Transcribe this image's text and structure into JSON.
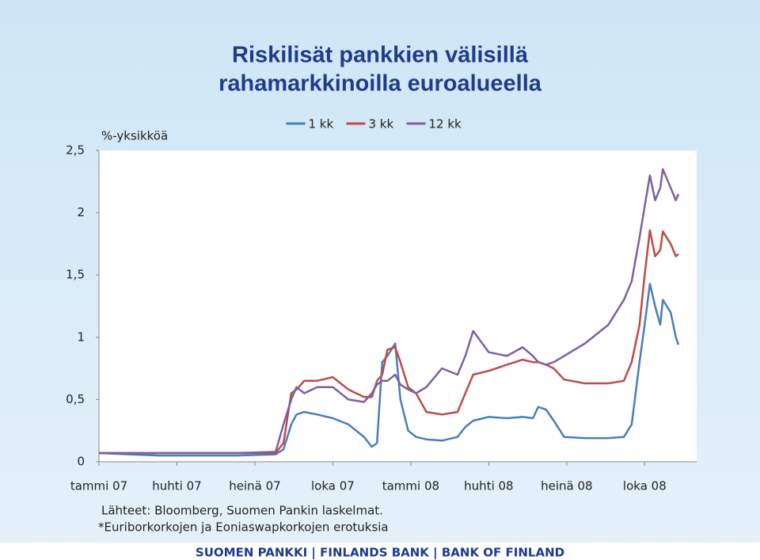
{
  "chart_data": {
    "type": "line",
    "title": [
      "Riskilisät pankkien välisillä",
      "rahamarkkinoilla euroalueella"
    ],
    "y_axis_label": "%-yksikköä",
    "notes": [
      "Lähteet: Bloomberg, Suomen Pankin laskelmat.",
      "*Euriborkorkojen ja Eoniaswapkorkojen erotuksia"
    ],
    "footer": "SUOMEN PANKKI | FINLANDS BANK | BANK OF FINLAND",
    "legend": "top",
    "x": [
      0,
      2.3,
      5.3,
      6.8,
      7.1,
      7.4,
      7.6,
      7.9,
      8.4,
      9.0,
      9.6,
      10.2,
      10.5,
      10.7,
      10.9,
      11.1,
      11.4,
      11.6,
      11.9,
      12.2,
      12.6,
      13.2,
      13.8,
      14.1,
      14.4,
      15.0,
      15.7,
      16.3,
      16.7,
      16.9,
      17.2,
      17.5,
      17.9,
      18.7,
      19.6,
      20.2,
      20.5,
      20.8,
      21.0,
      21.2,
      21.4,
      21.6,
      21.7,
      22.0,
      22.2,
      22.3
    ],
    "series": [
      {
        "name": "1 kk",
        "color": "#4a7ebb",
        "values": [
          0.07,
          0.05,
          0.05,
          0.06,
          0.1,
          0.3,
          0.38,
          0.4,
          0.38,
          0.35,
          0.3,
          0.2,
          0.12,
          0.15,
          0.8,
          0.85,
          0.95,
          0.5,
          0.25,
          0.2,
          0.18,
          0.17,
          0.2,
          0.28,
          0.33,
          0.36,
          0.35,
          0.36,
          0.35,
          0.44,
          0.42,
          0.33,
          0.2,
          0.19,
          0.19,
          0.2,
          0.3,
          0.8,
          1.1,
          1.43,
          1.25,
          1.1,
          1.3,
          1.2,
          1.0,
          0.94
        ]
      },
      {
        "name": "3 kk",
        "color": "#be4b48",
        "values": [
          0.07,
          0.07,
          0.07,
          0.07,
          0.15,
          0.55,
          0.58,
          0.65,
          0.65,
          0.68,
          0.58,
          0.52,
          0.52,
          0.65,
          0.7,
          0.9,
          0.92,
          0.8,
          0.6,
          0.55,
          0.4,
          0.38,
          0.4,
          0.55,
          0.7,
          0.73,
          0.78,
          0.82,
          0.8,
          0.8,
          0.78,
          0.75,
          0.66,
          0.63,
          0.63,
          0.65,
          0.8,
          1.1,
          1.5,
          1.86,
          1.65,
          1.7,
          1.85,
          1.75,
          1.65,
          1.67
        ]
      },
      {
        "name": "12 kk",
        "color": "#7d60a0",
        "values": [
          0.07,
          0.07,
          0.07,
          0.08,
          0.3,
          0.5,
          0.6,
          0.55,
          0.6,
          0.6,
          0.5,
          0.48,
          0.55,
          0.62,
          0.65,
          0.65,
          0.7,
          0.62,
          0.58,
          0.55,
          0.6,
          0.75,
          0.7,
          0.85,
          1.05,
          0.88,
          0.85,
          0.92,
          0.85,
          0.8,
          0.78,
          0.8,
          0.85,
          0.95,
          1.1,
          1.3,
          1.45,
          1.8,
          2.05,
          2.3,
          2.1,
          2.2,
          2.35,
          2.2,
          2.1,
          2.15
        ]
      }
    ],
    "xlim": [
      0,
      23
    ],
    "xticks": [
      {
        "value": 0,
        "label": "tammi 07"
      },
      {
        "value": 3,
        "label": "huhti 07"
      },
      {
        "value": 6,
        "label": "heinä 07"
      },
      {
        "value": 9,
        "label": "loka 07"
      },
      {
        "value": 12,
        "label": "tammi 08"
      },
      {
        "value": 15,
        "label": "huhti 08"
      },
      {
        "value": 18,
        "label": "heinä 08"
      },
      {
        "value": 21,
        "label": "loka 08"
      }
    ],
    "ylim": [
      0,
      2.5
    ],
    "yticks": [
      0,
      {
        "value": 0.5,
        "label": "0,5"
      },
      1,
      {
        "value": 1.5,
        "label": "1,5"
      },
      2,
      {
        "value": 2.5,
        "label": "2,5"
      }
    ],
    "grid": false
  }
}
